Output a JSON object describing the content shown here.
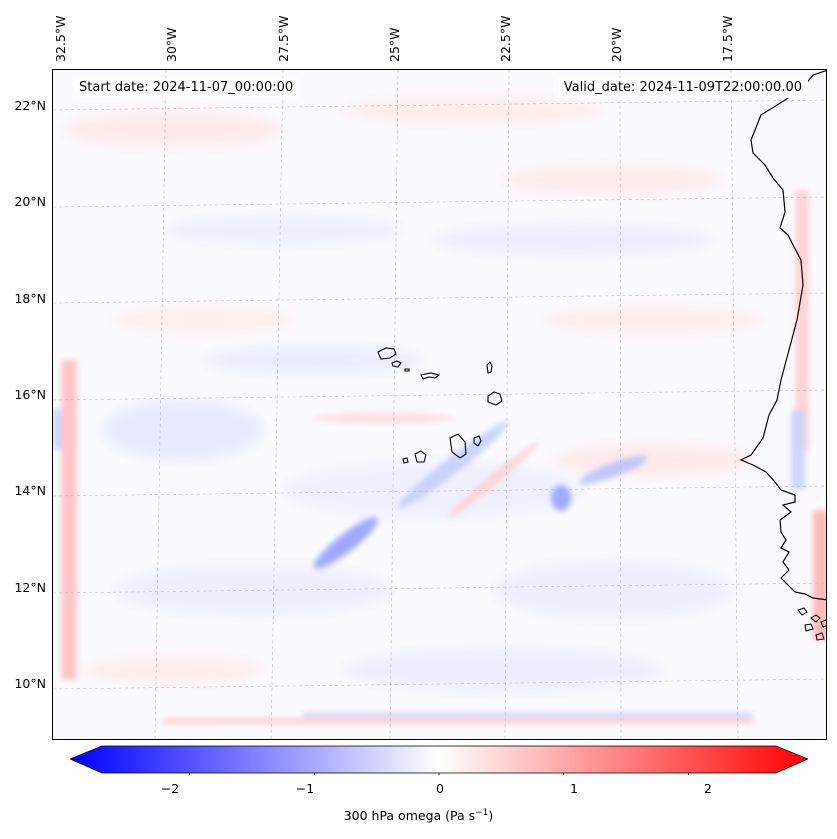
{
  "map": {
    "start_date": "Start date: 2024-11-07_00:00:00",
    "valid_date": "Valid_date: 2024-11-09T22:00:00.00",
    "longitude_labels": [
      "32.5°W",
      "30°W",
      "27.5°W",
      "25°W",
      "22.5°W",
      "20°W",
      "17.5°W"
    ],
    "latitude_labels": [
      "22°N",
      "20°N",
      "18°N",
      "16°N",
      "14°N",
      "12°N",
      "10°N"
    ],
    "field": "300 hPa omega",
    "colors": {
      "negative": "#0000ff",
      "zero": "#ffffff",
      "positive": "#ff0000",
      "coastline": "#000000",
      "gridline": "#b8b8b8"
    }
  },
  "colorbar": {
    "label_text": "300 hPa omega (Pa s",
    "label_exp": "−1",
    "label_close": ")",
    "min": -2.7,
    "max": 2.7,
    "ticks": [
      {
        "value": -2,
        "label": "−2"
      },
      {
        "value": -1,
        "label": "−1"
      },
      {
        "value": 0,
        "label": "0"
      },
      {
        "value": 1,
        "label": "1"
      },
      {
        "value": 2,
        "label": "2"
      }
    ]
  }
}
